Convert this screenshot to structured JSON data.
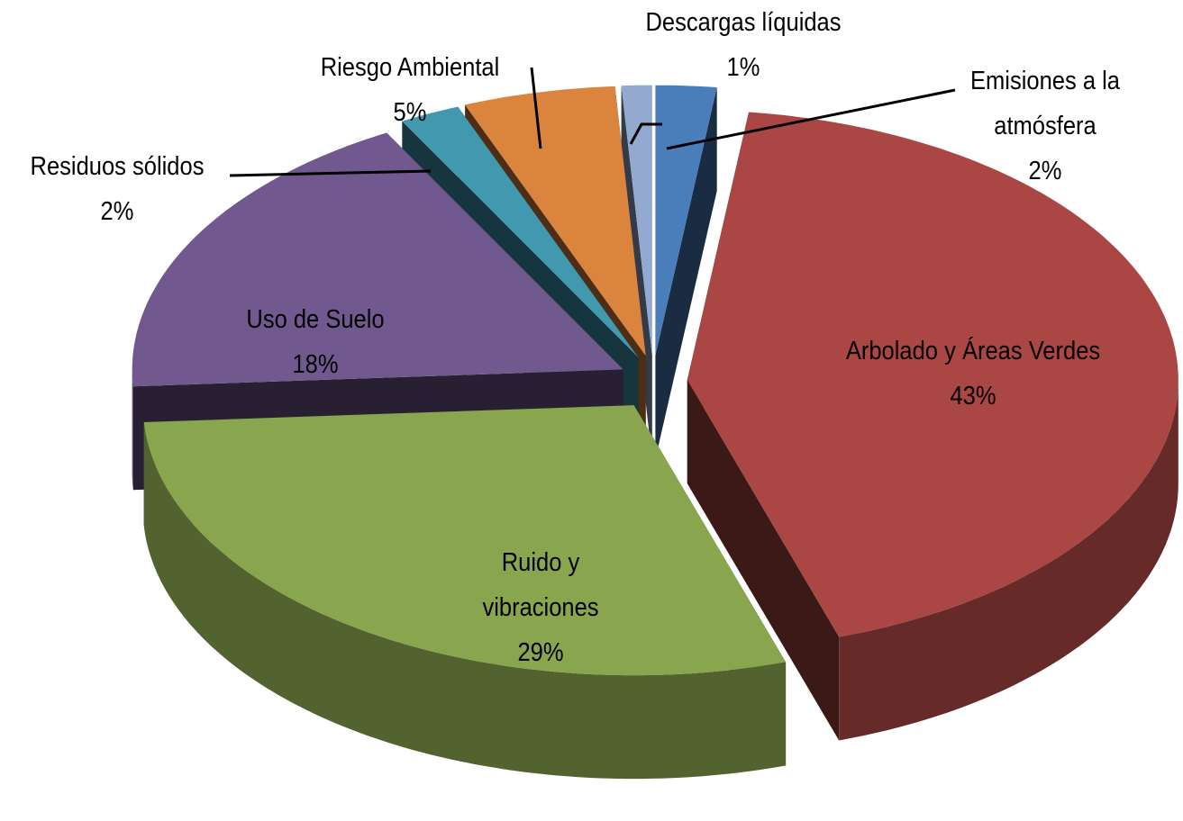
{
  "chart_data": {
    "type": "pie3d",
    "categories": [
      "Emisiones a la atmósfera",
      "Arbolado y Áreas Verdes",
      "Ruido y vibraciones",
      "Uso de Suelo",
      "Residuos sólidos",
      "Riesgo Ambiental",
      "Descargas líquidas"
    ],
    "values": [
      2,
      43,
      29,
      18,
      2,
      5,
      1
    ],
    "value_labels": [
      "2%",
      "43%",
      "29%",
      "18%",
      "2%",
      "5%",
      "1%"
    ],
    "colors": [
      "#4a7ebb",
      "#aa4643",
      "#89a54e",
      "#71588f",
      "#4198af",
      "#db843d",
      "#93a9cf"
    ]
  }
}
